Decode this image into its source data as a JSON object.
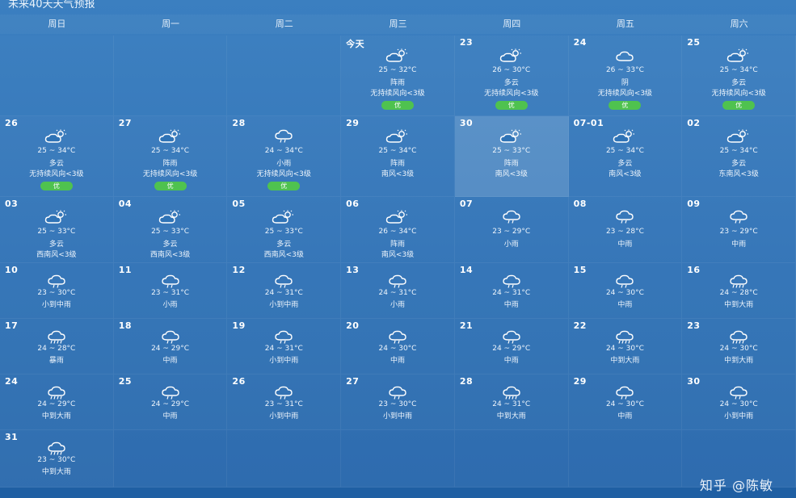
{
  "title": "未来40天天气预报",
  "weekdays": [
    "周日",
    "周一",
    "周二",
    "周三",
    "周四",
    "周五",
    "周六"
  ],
  "leading_empty": 3,
  "days": [
    {
      "date": "今天",
      "icon": "partly-cloudy-icon",
      "temp": "25 ~ 32°C",
      "cond": "阵雨",
      "wind": "无持续风向<3级",
      "aqi": "优"
    },
    {
      "date": "23",
      "icon": "partly-cloudy-icon",
      "temp": "26 ~ 30°C",
      "cond": "多云",
      "wind": "无持续风向<3级",
      "aqi": "优"
    },
    {
      "date": "24",
      "icon": "cloud-icon",
      "temp": "26 ~ 33°C",
      "cond": "阴",
      "wind": "无持续风向<3级",
      "aqi": "优"
    },
    {
      "date": "25",
      "icon": "partly-cloudy-icon",
      "temp": "25 ~ 34°C",
      "cond": "多云",
      "wind": "无持续风向<3级",
      "aqi": "优"
    },
    {
      "date": "26",
      "icon": "partly-cloudy-icon",
      "temp": "25 ~ 34°C",
      "cond": "多云",
      "wind": "无持续风向<3级",
      "aqi": "优"
    },
    {
      "date": "27",
      "icon": "partly-cloudy-icon",
      "temp": "25 ~ 34°C",
      "cond": "阵雨",
      "wind": "无持续风向<3级",
      "aqi": "优"
    },
    {
      "date": "28",
      "icon": "rain-icon",
      "temp": "24 ~ 34°C",
      "cond": "小雨",
      "wind": "无持续风向<3级",
      "aqi": "优"
    },
    {
      "date": "29",
      "icon": "partly-cloudy-icon",
      "temp": "25 ~ 34°C",
      "cond": "阵雨",
      "wind": "南风<3级",
      "aqi": ""
    },
    {
      "date": "30",
      "icon": "partly-cloudy-icon",
      "temp": "25 ~ 33°C",
      "cond": "阵雨",
      "wind": "南风<3级",
      "aqi": "",
      "highlight": true
    },
    {
      "date": "07-01",
      "icon": "partly-cloudy-icon",
      "temp": "25 ~ 34°C",
      "cond": "多云",
      "wind": "南风<3级",
      "aqi": ""
    },
    {
      "date": "02",
      "icon": "partly-cloudy-icon",
      "temp": "25 ~ 34°C",
      "cond": "多云",
      "wind": "东南风<3级",
      "aqi": ""
    },
    {
      "date": "03",
      "icon": "partly-cloudy-icon",
      "temp": "25 ~ 33°C",
      "cond": "多云",
      "wind": "西南风<3级",
      "aqi": ""
    },
    {
      "date": "04",
      "icon": "partly-cloudy-icon",
      "temp": "25 ~ 33°C",
      "cond": "多云",
      "wind": "西南风<3级",
      "aqi": ""
    },
    {
      "date": "05",
      "icon": "partly-cloudy-icon",
      "temp": "25 ~ 33°C",
      "cond": "多云",
      "wind": "西南风<3级",
      "aqi": ""
    },
    {
      "date": "06",
      "icon": "partly-cloudy-icon",
      "temp": "26 ~ 34°C",
      "cond": "阵雨",
      "wind": "南风<3级",
      "aqi": ""
    },
    {
      "date": "07",
      "icon": "rain-icon",
      "temp": "23 ~ 29°C",
      "cond": "小雨",
      "wind": "",
      "aqi": ""
    },
    {
      "date": "08",
      "icon": "rain-icon",
      "temp": "23 ~ 28°C",
      "cond": "中雨",
      "wind": "",
      "aqi": ""
    },
    {
      "date": "09",
      "icon": "rain-icon",
      "temp": "23 ~ 29°C",
      "cond": "中雨",
      "wind": "",
      "aqi": ""
    },
    {
      "date": "10",
      "icon": "rain-icon",
      "temp": "23 ~ 30°C",
      "cond": "小到中雨",
      "wind": "",
      "aqi": ""
    },
    {
      "date": "11",
      "icon": "rain-icon",
      "temp": "23 ~ 31°C",
      "cond": "小雨",
      "wind": "",
      "aqi": ""
    },
    {
      "date": "12",
      "icon": "rain-icon",
      "temp": "24 ~ 31°C",
      "cond": "小到中雨",
      "wind": "",
      "aqi": ""
    },
    {
      "date": "13",
      "icon": "rain-icon",
      "temp": "24 ~ 31°C",
      "cond": "小雨",
      "wind": "",
      "aqi": ""
    },
    {
      "date": "14",
      "icon": "rain-icon",
      "temp": "24 ~ 31°C",
      "cond": "中雨",
      "wind": "",
      "aqi": ""
    },
    {
      "date": "15",
      "icon": "rain-icon",
      "temp": "24 ~ 30°C",
      "cond": "中雨",
      "wind": "",
      "aqi": ""
    },
    {
      "date": "16",
      "icon": "heavy-rain-icon",
      "temp": "24 ~ 28°C",
      "cond": "中到大雨",
      "wind": "",
      "aqi": ""
    },
    {
      "date": "17",
      "icon": "heavy-rain-icon",
      "temp": "24 ~ 28°C",
      "cond": "暴雨",
      "wind": "",
      "aqi": ""
    },
    {
      "date": "18",
      "icon": "rain-icon",
      "temp": "24 ~ 29°C",
      "cond": "中雨",
      "wind": "",
      "aqi": ""
    },
    {
      "date": "19",
      "icon": "rain-icon",
      "temp": "24 ~ 31°C",
      "cond": "小到中雨",
      "wind": "",
      "aqi": ""
    },
    {
      "date": "20",
      "icon": "rain-icon",
      "temp": "24 ~ 30°C",
      "cond": "中雨",
      "wind": "",
      "aqi": ""
    },
    {
      "date": "21",
      "icon": "rain-icon",
      "temp": "24 ~ 29°C",
      "cond": "中雨",
      "wind": "",
      "aqi": ""
    },
    {
      "date": "22",
      "icon": "heavy-rain-icon",
      "temp": "24 ~ 30°C",
      "cond": "中到大雨",
      "wind": "",
      "aqi": ""
    },
    {
      "date": "23",
      "icon": "heavy-rain-icon",
      "temp": "24 ~ 30°C",
      "cond": "中到大雨",
      "wind": "",
      "aqi": ""
    },
    {
      "date": "24",
      "icon": "heavy-rain-icon",
      "temp": "24 ~ 29°C",
      "cond": "中到大雨",
      "wind": "",
      "aqi": ""
    },
    {
      "date": "25",
      "icon": "rain-icon",
      "temp": "24 ~ 29°C",
      "cond": "中雨",
      "wind": "",
      "aqi": ""
    },
    {
      "date": "26",
      "icon": "rain-icon",
      "temp": "23 ~ 31°C",
      "cond": "小到中雨",
      "wind": "",
      "aqi": ""
    },
    {
      "date": "27",
      "icon": "rain-icon",
      "temp": "23 ~ 30°C",
      "cond": "小到中雨",
      "wind": "",
      "aqi": ""
    },
    {
      "date": "28",
      "icon": "heavy-rain-icon",
      "temp": "24 ~ 31°C",
      "cond": "中到大雨",
      "wind": "",
      "aqi": ""
    },
    {
      "date": "29",
      "icon": "rain-icon",
      "temp": "24 ~ 30°C",
      "cond": "中雨",
      "wind": "",
      "aqi": ""
    },
    {
      "date": "30",
      "icon": "rain-icon",
      "temp": "24 ~ 30°C",
      "cond": "小到中雨",
      "wind": "",
      "aqi": ""
    },
    {
      "date": "31",
      "icon": "heavy-rain-icon",
      "temp": "23 ~ 30°C",
      "cond": "中到大雨",
      "wind": "",
      "aqi": ""
    }
  ],
  "watermark": "知乎 @陈敏",
  "colors": {
    "background": "#2f73b6",
    "aqi_good": "#4fc24f",
    "highlight": "#ffffff"
  }
}
